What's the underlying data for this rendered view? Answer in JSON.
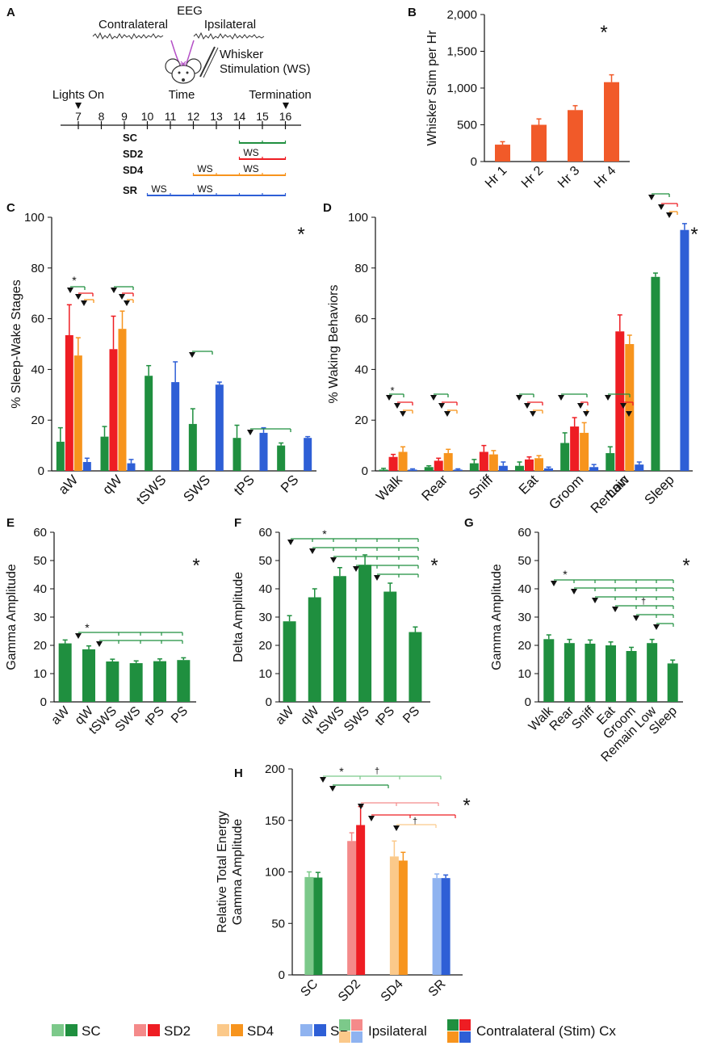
{
  "colors": {
    "SC": "#1f8f3f",
    "SC_light": "#7cc98a",
    "SD2": "#ee1d23",
    "SD2_light": "#f48a8a",
    "SD4": "#f7941d",
    "SD4_light": "#fbc98a",
    "SR": "#2e5fd6",
    "SR_light": "#8fb3f0",
    "bar_orange": "#f15a29",
    "purple": "#b44fc6"
  },
  "panelA": {
    "letter": "A",
    "eeg": "EEG",
    "contralateral": "Contralateral",
    "ipsilateral": "Ipsilateral",
    "whisker_stim": "Whisker\nStimulation (WS)",
    "time": "Time",
    "lights_on": "Lights On",
    "termination": "Termination",
    "hours": [
      "7",
      "8",
      "9",
      "10",
      "11",
      "12",
      "13",
      "14",
      "15",
      "16"
    ],
    "groups": [
      {
        "name": "SC",
        "start": 14,
        "end": 16,
        "ws_labels": []
      },
      {
        "name": "SD2",
        "start": 14,
        "end": 16,
        "ws_labels": [
          15
        ]
      },
      {
        "name": "SD4",
        "start": 12,
        "end": 16,
        "ws_labels": [
          13,
          15
        ]
      },
      {
        "name": "SR",
        "start": 10,
        "end": 16,
        "ws_labels": [
          11,
          13
        ]
      }
    ],
    "ws": "WS"
  },
  "chart_data": [
    {
      "panel": "B",
      "type": "bar",
      "ylabel": "Whisker Stim per Hr",
      "categories": [
        "Hr 1",
        "Hr 2",
        "Hr 3",
        "Hr 4"
      ],
      "values": [
        230,
        500,
        700,
        1080
      ],
      "errors": [
        40,
        80,
        60,
        100
      ],
      "ylim": [
        0,
        2000
      ],
      "yticks": [
        "0",
        "500",
        "1,000",
        "1,500",
        "2,000"
      ],
      "star": "*"
    },
    {
      "panel": "C",
      "type": "bar",
      "ylabel": "% Sleep-Wake Stages",
      "categories": [
        "aW",
        "qW",
        "tSWS",
        "SWS",
        "tPS",
        "PS"
      ],
      "series": [
        {
          "name": "SC",
          "values": [
            11.5,
            13.5,
            37.5,
            18.5,
            13,
            10
          ],
          "errors": [
            5.5,
            4,
            4,
            6,
            5,
            1
          ]
        },
        {
          "name": "SD2",
          "values": [
            53.5,
            48,
            null,
            null,
            null,
            null
          ],
          "errors": [
            12,
            13,
            null,
            null,
            null,
            null
          ]
        },
        {
          "name": "SD4",
          "values": [
            45.5,
            56,
            null,
            null,
            null,
            null
          ],
          "errors": [
            7,
            7,
            null,
            null,
            null,
            null
          ]
        },
        {
          "name": "SR",
          "values": [
            3.5,
            3,
            35,
            34,
            15,
            13
          ],
          "errors": [
            1.5,
            1.5,
            8,
            1,
            2,
            0.5
          ]
        }
      ],
      "ylim": [
        0,
        100
      ],
      "yticks": [
        "0",
        "20",
        "40",
        "60",
        "80",
        "100"
      ],
      "star": "*",
      "sig_star": "*"
    },
    {
      "panel": "D",
      "type": "bar",
      "ylabel": "% Waking Behaviors",
      "categories": [
        "Walk",
        "Rear",
        "Sniff",
        "Eat",
        "Groom",
        "Remain\nLow",
        "Sleep"
      ],
      "series": [
        {
          "name": "SC",
          "values": [
            0.5,
            1.5,
            3,
            2,
            11,
            7,
            76.5
          ],
          "errors": [
            0.5,
            0.5,
            1.5,
            1.5,
            4,
            2.5,
            1.5
          ]
        },
        {
          "name": "SD2",
          "values": [
            5.5,
            4,
            7.5,
            4.5,
            17.5,
            55,
            null
          ],
          "errors": [
            1,
            1,
            2.5,
            1,
            3.5,
            6.5,
            null
          ]
        },
        {
          "name": "SD4",
          "values": [
            7.5,
            7,
            6.5,
            5,
            15,
            50,
            null
          ],
          "errors": [
            2,
            1.5,
            1.5,
            1,
            4,
            3.5,
            null
          ]
        },
        {
          "name": "SR",
          "values": [
            0.5,
            0.5,
            2,
            1,
            1.5,
            2.5,
            95
          ],
          "errors": [
            0.3,
            0.3,
            1.5,
            0.5,
            1,
            1,
            2.5
          ]
        }
      ],
      "ylim": [
        0,
        100
      ],
      "yticks": [
        "0",
        "20",
        "40",
        "60",
        "80",
        "100"
      ],
      "star": "*",
      "sig_star": "*"
    },
    {
      "panel": "E",
      "type": "bar",
      "ylabel": "Gamma Amplitude",
      "categories": [
        "aW",
        "qW",
        "tSWS",
        "SWS",
        "tPS",
        "PS"
      ],
      "values": [
        20.7,
        18.6,
        14.3,
        13.7,
        14.4,
        14.8
      ],
      "errors": [
        1.2,
        1.2,
        0.8,
        0.8,
        0.8,
        0.8
      ],
      "ylim": [
        0,
        60
      ],
      "yticks": [
        "0",
        "10",
        "20",
        "30",
        "40",
        "50",
        "60"
      ],
      "star": "*",
      "sig_star": "*"
    },
    {
      "panel": "F",
      "type": "bar",
      "ylabel": "Delta Amplitude",
      "categories": [
        "aW",
        "qW",
        "tSWS",
        "SWS",
        "tPS",
        "PS"
      ],
      "values": [
        28.5,
        37,
        44.5,
        48.5,
        39,
        24.7
      ],
      "errors": [
        2,
        3,
        3,
        3.5,
        3,
        1.8
      ],
      "ylim": [
        0,
        60
      ],
      "yticks": [
        "0",
        "10",
        "20",
        "30",
        "40",
        "50",
        "60"
      ],
      "star": "*",
      "sig_star": "*"
    },
    {
      "panel": "G",
      "type": "bar",
      "ylabel": "Gamma Amplitude",
      "categories": [
        "Walk",
        "Rear",
        "Sniff",
        "Eat",
        "Groom",
        "Remain Low",
        "Sleep"
      ],
      "values": [
        22.2,
        20.8,
        20.6,
        20,
        18,
        20.8,
        13.6
      ],
      "errors": [
        1.5,
        1.3,
        1.3,
        1.2,
        1.3,
        1.3,
        1.2
      ],
      "ylim": [
        0,
        60
      ],
      "yticks": [
        "0",
        "10",
        "20",
        "30",
        "40",
        "50",
        "60"
      ],
      "star": "*",
      "sig_star": "*",
      "dagger": "†"
    },
    {
      "panel": "H",
      "type": "bar",
      "ylabel": "Relative Total Energy\nGamma Amplitude",
      "categories": [
        "SC",
        "SD2",
        "SD4",
        "SR"
      ],
      "series": [
        {
          "name": "Ipsilateral",
          "values": [
            95,
            130,
            115,
            94
          ],
          "errors": [
            5,
            8,
            15,
            4
          ]
        },
        {
          "name": "Contralateral (Stim) Cx",
          "values": [
            94.5,
            145.5,
            111,
            94
          ],
          "errors": [
            5,
            18,
            8,
            3
          ]
        }
      ],
      "ylim": [
        0,
        200
      ],
      "yticks": [
        "0",
        "50",
        "100",
        "150",
        "200"
      ],
      "star": "*",
      "sig_star": "*",
      "dagger": "†"
    }
  ],
  "legend": {
    "groups": [
      "SC",
      "SD2",
      "SD4",
      "SR"
    ],
    "ipsilateral": "Ipsilateral",
    "contralateral": "Contralateral (Stim) Cx"
  }
}
